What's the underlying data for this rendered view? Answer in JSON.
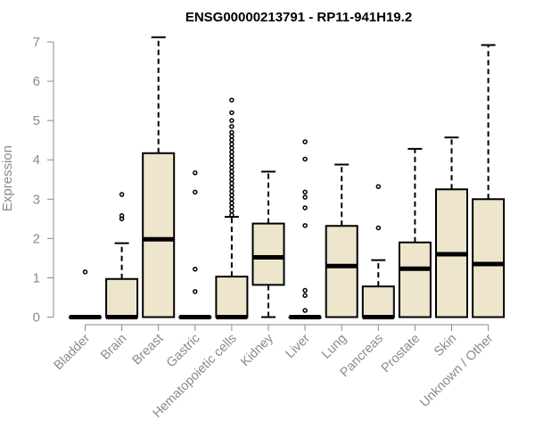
{
  "chart_data": {
    "type": "box",
    "title": "ENSG00000213791 - RP11-941H19.2",
    "xlabel": "",
    "ylabel": "Expression",
    "ylim": [
      0,
      7
    ],
    "yticks": [
      0,
      1,
      2,
      3,
      4,
      5,
      6,
      7
    ],
    "grid": false,
    "colors": {
      "box_fill": "#ede6cc",
      "stroke": "#000000",
      "axis_text": "#8a8a8a"
    },
    "categories": [
      "Bladder",
      "Brain",
      "Breast",
      "Gastric",
      "Hematopoietic cells",
      "Kidney",
      "Liver",
      "Lung",
      "Pancreas",
      "Prostate",
      "Skin",
      "Unknown / Other"
    ],
    "boxes": [
      {
        "category": "Bladder",
        "min": 0,
        "q1": 0,
        "median": 0,
        "q3": 0,
        "max": 0,
        "outliers": [
          1.15
        ]
      },
      {
        "category": "Brain",
        "min": 0,
        "q1": 0,
        "median": 0,
        "q3": 0.97,
        "max": 1.88,
        "outliers": [
          2.5,
          2.58,
          3.12
        ]
      },
      {
        "category": "Breast",
        "min": 0,
        "q1": 0,
        "median": 1.98,
        "q3": 4.17,
        "max": 7.12,
        "outliers": []
      },
      {
        "category": "Gastric",
        "min": 0,
        "q1": 0,
        "median": 0,
        "q3": 0,
        "max": 0,
        "outliers": [
          0.65,
          1.22,
          3.18,
          3.67
        ]
      },
      {
        "category": "Hematopoietic cells",
        "min": 0,
        "q1": 0,
        "median": 0,
        "q3": 1.03,
        "max": 2.55,
        "outliers": [
          2.6,
          2.7,
          2.8,
          2.9,
          3.0,
          3.1,
          3.2,
          3.3,
          3.4,
          3.5,
          3.6,
          3.7,
          3.8,
          3.9,
          4.0,
          4.1,
          4.2,
          4.3,
          4.4,
          4.5,
          4.6,
          4.7,
          4.85,
          5.0,
          5.2,
          5.52
        ]
      },
      {
        "category": "Kidney",
        "min": 0,
        "q1": 0.82,
        "median": 1.52,
        "q3": 2.38,
        "max": 3.7,
        "outliers": []
      },
      {
        "category": "Liver",
        "min": 0,
        "q1": 0,
        "median": 0,
        "q3": 0,
        "max": 0,
        "outliers": [
          0.17,
          0.55,
          0.68,
          2.33,
          2.78,
          3.05,
          3.18,
          4.02,
          4.46
        ]
      },
      {
        "category": "Lung",
        "min": 0,
        "q1": 0,
        "median": 1.3,
        "q3": 2.32,
        "max": 3.88,
        "outliers": []
      },
      {
        "category": "Pancreas",
        "min": 0,
        "q1": 0,
        "median": 0,
        "q3": 0.78,
        "max": 1.45,
        "outliers": [
          2.27,
          3.32
        ]
      },
      {
        "category": "Prostate",
        "min": 0,
        "q1": 0,
        "median": 1.23,
        "q3": 1.9,
        "max": 4.28,
        "outliers": []
      },
      {
        "category": "Skin",
        "min": 0,
        "q1": 0,
        "median": 1.6,
        "q3": 3.25,
        "max": 4.57,
        "outliers": []
      },
      {
        "category": "Unknown / Other",
        "min": 0,
        "q1": 0,
        "median": 1.35,
        "q3": 3.0,
        "max": 6.92,
        "outliers": []
      }
    ]
  }
}
